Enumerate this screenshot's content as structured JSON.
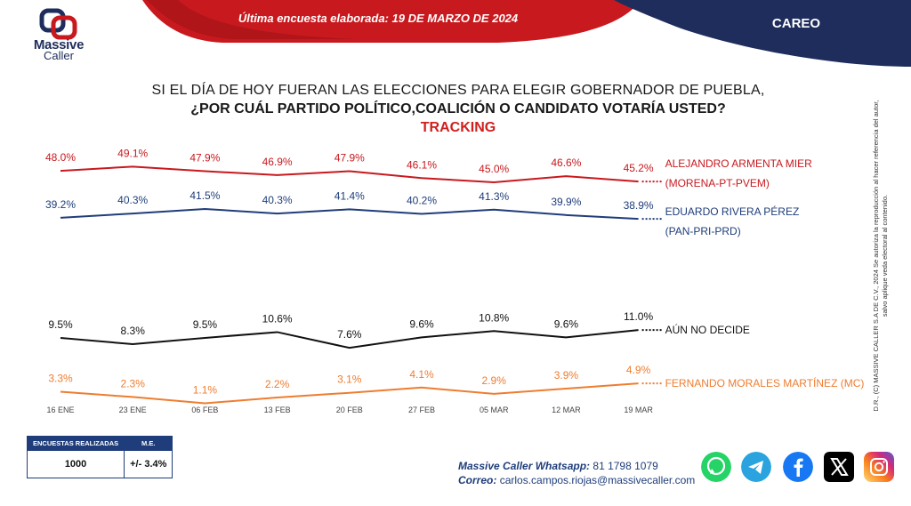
{
  "header": {
    "brand_line1": "Massive",
    "brand_line2": "Caller",
    "survey_date": "Última encuesta elaborada: 19 DE MARZO DE 2024",
    "section": "CAREO",
    "colors": {
      "red": "#c8191e",
      "navy": "#1f2d5c"
    }
  },
  "question": {
    "line1": "SI EL DÍA DE HOY FUERAN LAS ELECCIONES PARA ELEGIR GOBERNADOR DE PUEBLA,",
    "line2": "¿POR CUÁL PARTIDO POLÍTICO,COALICIÓN  O CANDIDATO  VOTARÍA USTED?",
    "line3": "TRACKING"
  },
  "side_note": "D.R., (C) MASSIVE CALLER S.A DE C.V., 2024 Se autoriza la reproducción al hacer referencia del autor, salvo aplique veda electoral al contenido.",
  "chart_data": {
    "type": "line",
    "categories": [
      "16 ENE",
      "23 ENE",
      "06 FEB",
      "13 FEB",
      "20 FEB",
      "27 FEB",
      "05 MAR",
      "12 MAR",
      "19 MAR"
    ],
    "series": [
      {
        "name": "ALEJANDRO ARMENTA MIER",
        "name2": "(MORENA-PT-PVEM)",
        "color": "#c8191e",
        "values": [
          48.0,
          49.1,
          47.9,
          46.9,
          47.9,
          46.1,
          45.0,
          46.6,
          45.2
        ],
        "labels": [
          "48.0%",
          "49.1%",
          "47.9%",
          "46.9%",
          "47.9%",
          "46.1%",
          "45.0%",
          "46.6%",
          "45.2%"
        ]
      },
      {
        "name": "EDUARDO RIVERA PÉREZ",
        "name2": "(PAN-PRI-PRD)",
        "color": "#1f3d7a",
        "values": [
          39.2,
          40.3,
          41.5,
          40.3,
          41.4,
          40.2,
          41.3,
          39.9,
          38.9
        ],
        "labels": [
          "39.2%",
          "40.3%",
          "41.5%",
          "40.3%",
          "41.4%",
          "40.2%",
          "41.3%",
          "39.9%",
          "38.9%"
        ]
      },
      {
        "name": "AÚN NO DECIDE",
        "name2": "",
        "color": "#111111",
        "values": [
          9.5,
          8.3,
          9.5,
          10.6,
          7.6,
          9.6,
          10.8,
          9.6,
          11.0
        ],
        "labels": [
          "9.5%",
          "8.3%",
          "9.5%",
          "10.6%",
          "7.6%",
          "9.6%",
          "10.8%",
          "9.6%",
          "11.0%"
        ]
      },
      {
        "name": "FERNANDO MORALES MARTÍNEZ (MC)",
        "name2": "",
        "color": "#ee7d31",
        "values": [
          3.3,
          2.3,
          1.1,
          2.2,
          3.1,
          4.1,
          2.9,
          3.9,
          4.9
        ],
        "labels": [
          "3.3%",
          "2.3%",
          "1.1%",
          "2.2%",
          "3.1%",
          "4.1%",
          "2.9%",
          "3.9%",
          "4.9%"
        ]
      }
    ]
  },
  "stats": {
    "col1": "ENCUESTAS REALIZADAS",
    "col2": "M.E.",
    "val1": "1000",
    "val2": "+/- 3.4%"
  },
  "contact": {
    "whatsapp_label": "Massive Caller Whatsapp:",
    "whatsapp_value": "81 1798 1079",
    "email_label": "Correo:",
    "email_value": "carlos.campos.riojas@massivecaller.com"
  },
  "social": [
    "whatsapp-icon",
    "telegram-icon",
    "facebook-icon",
    "x-icon",
    "instagram-icon"
  ]
}
